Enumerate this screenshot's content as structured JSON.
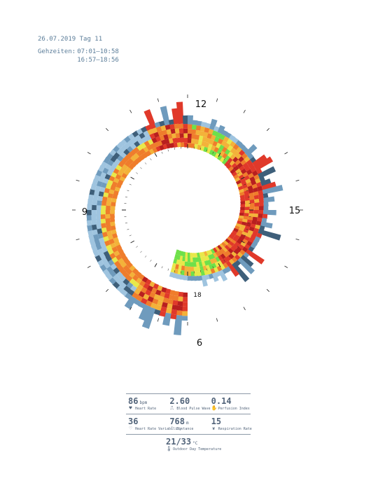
{
  "header": {
    "date_line": "26.07.2019 Tag 11",
    "gezeiten_label": "Gehzeiten:",
    "times": [
      "07:01–10:58",
      "16:57–18:56"
    ]
  },
  "clock_labels": {
    "twelve": "12",
    "three": "15",
    "nine": "9",
    "six": "6",
    "eighteen": "18"
  },
  "stats": {
    "heart_rate": {
      "value": "86",
      "unit": "bpm",
      "label": "Heart Rate",
      "icon": "heart-icon"
    },
    "blood_pulse_wave": {
      "value": "2.60",
      "unit": "",
      "label": "Blood Pulse Wave",
      "icon": "pulse-wave-icon"
    },
    "perfusion_index": {
      "value": "0.14",
      "unit": "",
      "label": "Perfusion Index",
      "icon": "perfusion-icon"
    },
    "heart_rate_variability": {
      "value": "36",
      "unit": "",
      "label": "Heart Rate Variability",
      "icon": "heart-variability-icon"
    },
    "distance": {
      "value": "768",
      "unit": "m",
      "label": "Distance",
      "icon": "footsteps-icon"
    },
    "respiration_rate": {
      "value": "15",
      "unit": "",
      "label": "Respiration Rate",
      "icon": "lungs-icon"
    },
    "outdoor_temperature": {
      "value": "21/33",
      "unit": "°C",
      "label": "Outdoor Day Temperature",
      "icon": "thermometer-icon"
    }
  },
  "chart_data": {
    "type": "radial-spiral-bar",
    "description_clock": "24h spiral, hour 6 at bottom outer, clockwise via 9, 12, 15 to 18 inner",
    "start_hour": 6,
    "end_hour": 18.5,
    "walking_periods": [
      [
        7.02,
        10.97
      ],
      [
        16.95,
        18.93
      ]
    ],
    "color_scale": [
      "#9fc4df",
      "#6f9bbd",
      "#3e5f7a",
      "#e8e84a",
      "#f3b23a",
      "#ef7d2c",
      "#e0392a",
      "#b81f1f",
      "#6fe04a"
    ],
    "segments": [
      {
        "from": 6.0,
        "to": 7.0,
        "level": "high"
      },
      {
        "from": 7.0,
        "to": 10.9,
        "level": "low"
      },
      {
        "from": 11.0,
        "to": 12.0,
        "level": "high"
      },
      {
        "from": 12.0,
        "to": 13.2,
        "level": "mixed"
      },
      {
        "from": 13.2,
        "to": 16.8,
        "level": "high"
      },
      {
        "from": 16.8,
        "to": 18.5,
        "level": "mixed"
      }
    ]
  }
}
